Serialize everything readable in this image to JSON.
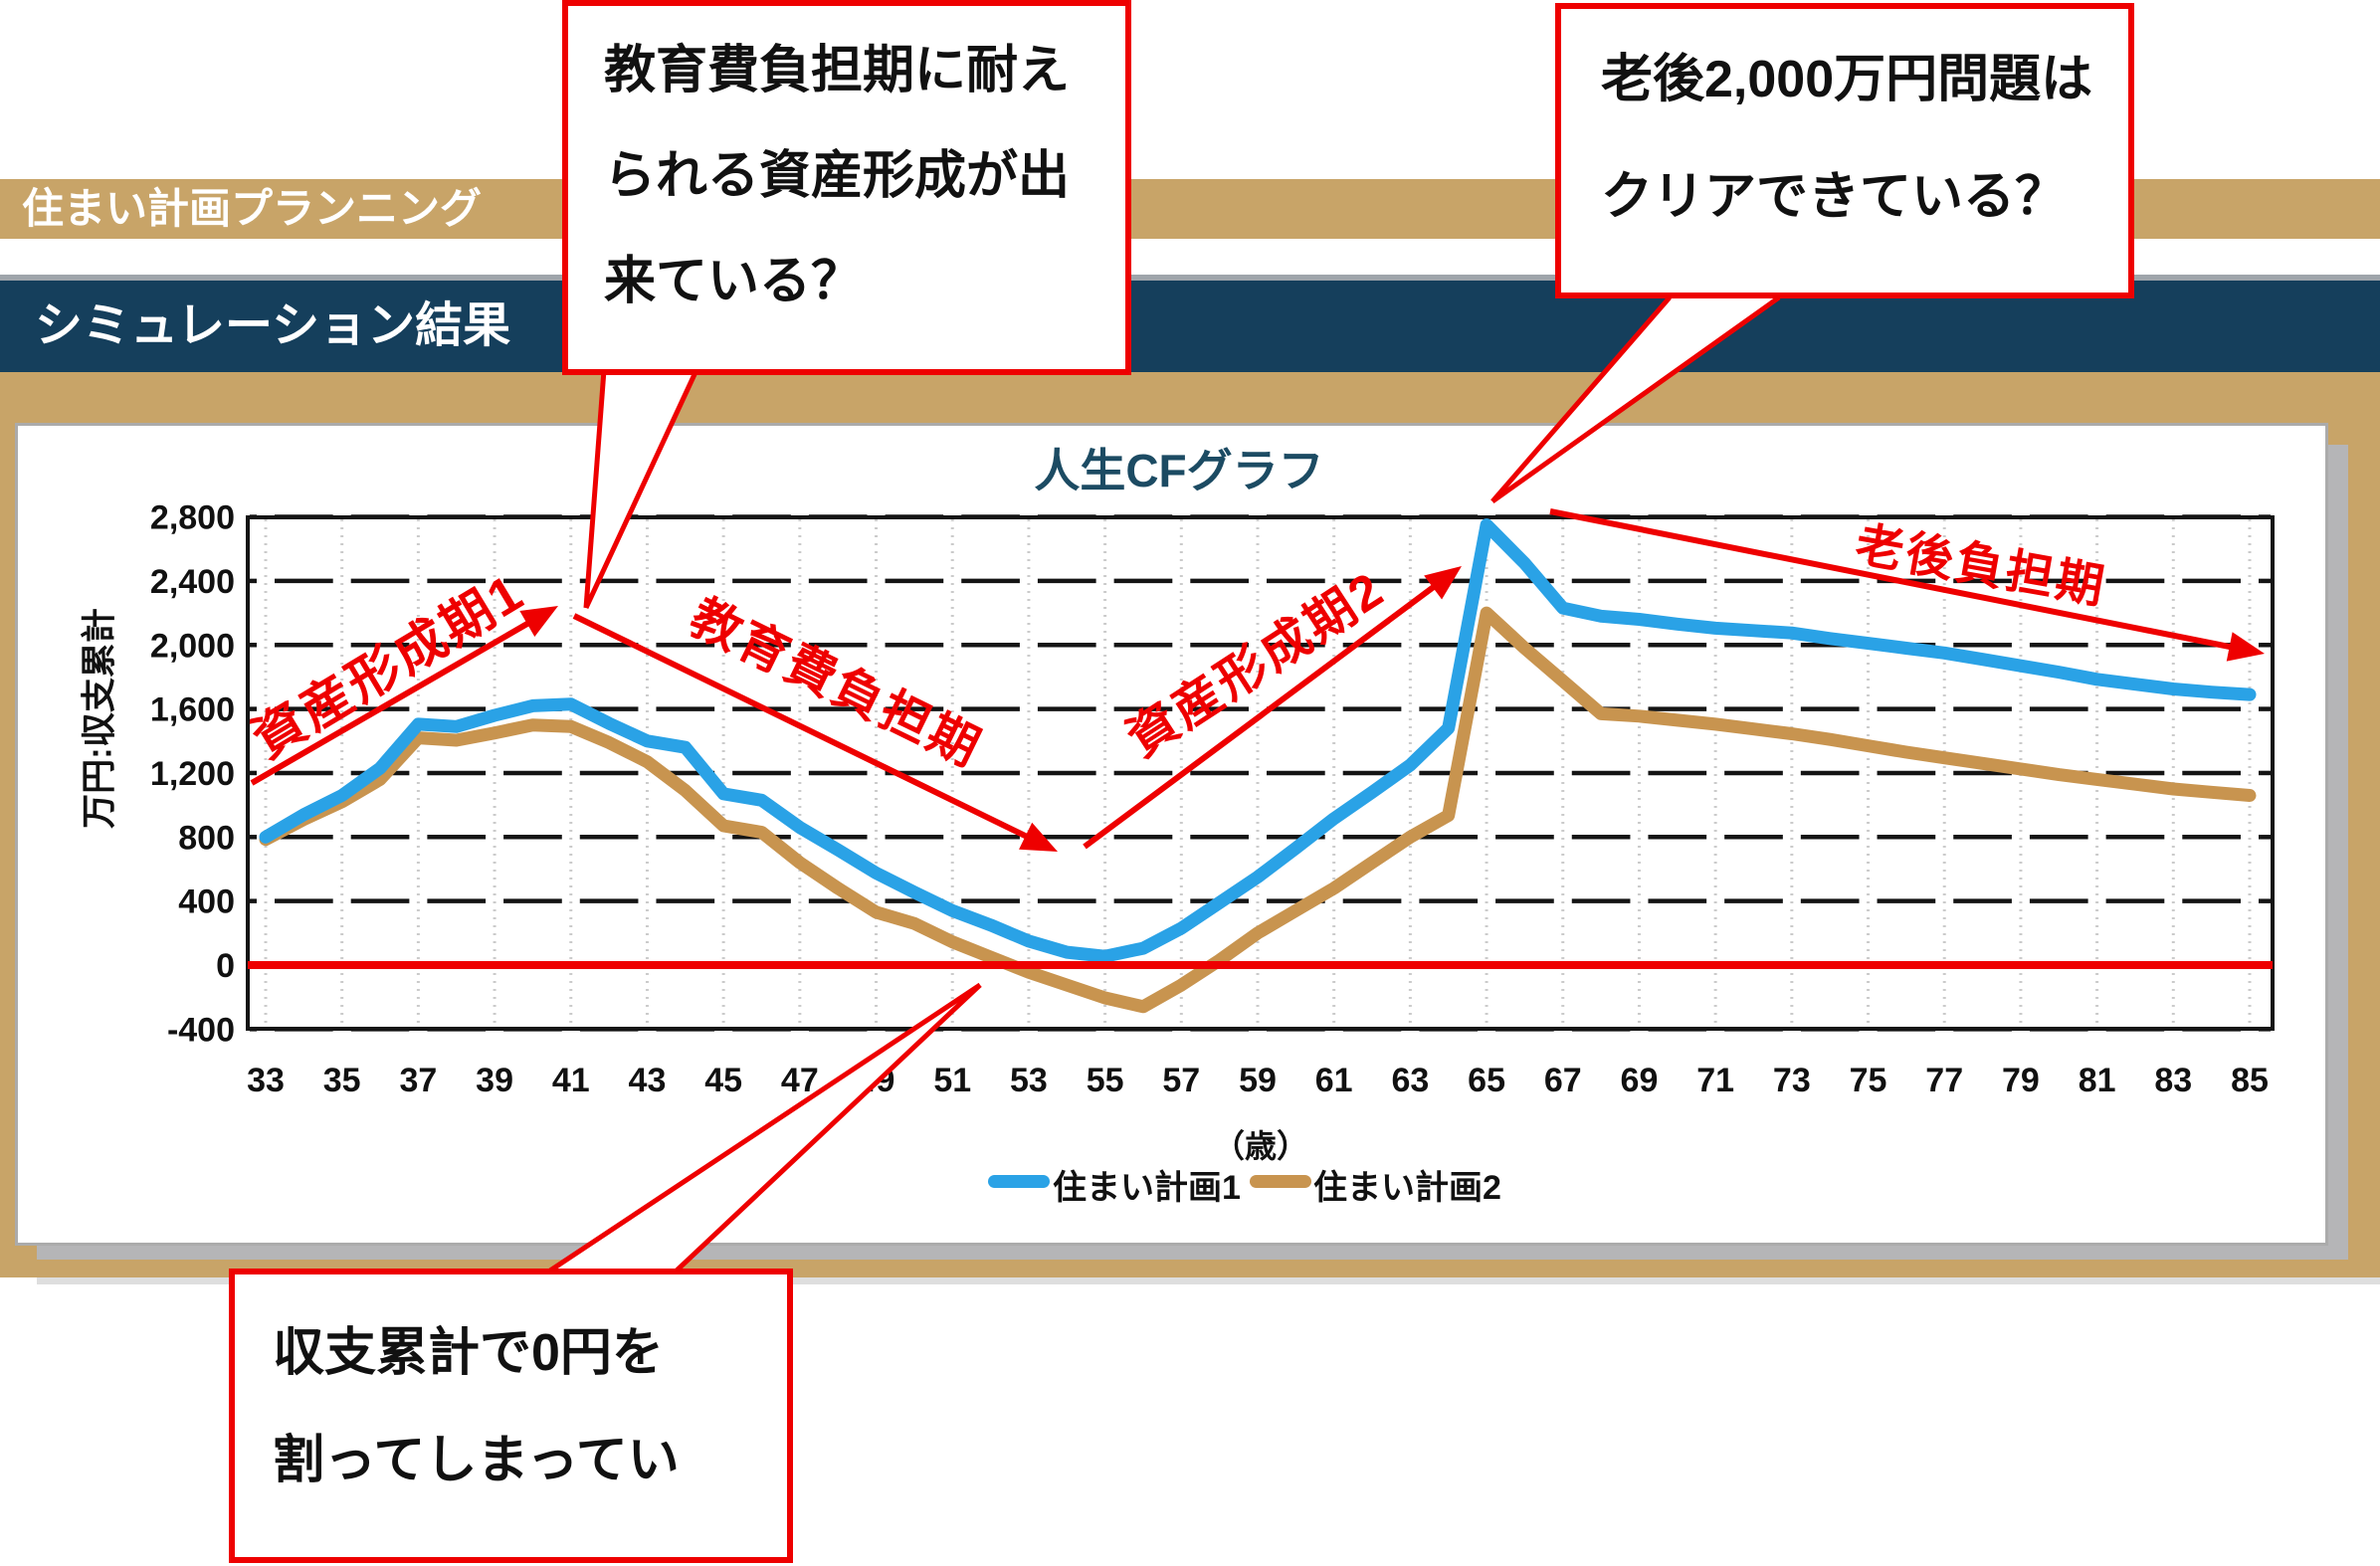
{
  "header": {
    "breadcrumb": "住まい計画プランニング",
    "section_title": "シミュレーション結果"
  },
  "chart": {
    "title": "人生CFグラフ",
    "y_axis_label": "万円:収支累計",
    "x_axis_unit": "（歳）"
  },
  "legend": [
    {
      "label": "住まい計画1",
      "color": "#2aa2e6"
    },
    {
      "label": "住まい計画2",
      "color": "#c8944f"
    }
  ],
  "callouts": {
    "education": {
      "lines": [
        "教育費負担期に耐え",
        "られる資産形成が出",
        "来ている？"
      ]
    },
    "retirement": {
      "lines": [
        "老後2,000万円問題は",
        "クリアできている？"
      ]
    },
    "deficit": {
      "lines": [
        "収支累計で0円を",
        "割ってしまってい"
      ]
    }
  },
  "annotations": {
    "asset1": {
      "label": "資産形成期1"
    },
    "education_period": {
      "label": "教育費負担期"
    },
    "asset2": {
      "label": "資産形成期2"
    },
    "retirement_period": {
      "label": "老後負担期"
    }
  },
  "colors": {
    "tan": "#c8a468",
    "navy": "#153f5c",
    "title_navy": "#1c4b63",
    "red": "#ee0000",
    "plan1_blue": "#2aa2e6",
    "plan2_tan": "#c8944f",
    "grid_black": "#141414",
    "grid_dotted": "#cbcbcb",
    "shadow_gray": "#b5b5b7"
  },
  "chart_data": {
    "type": "line",
    "title": "人生CFグラフ",
    "xlabel": "（歳）",
    "ylabel": "万円:収支累計",
    "x_start": 33,
    "x_end": 85,
    "x_tick_step": 2,
    "ylim": [
      -400,
      2800
    ],
    "y_tick_step": 400,
    "y_ticks": [
      2800,
      2400,
      2000,
      1600,
      1200,
      800,
      400,
      0,
      -400
    ],
    "x_ticks": [
      33,
      35,
      37,
      39,
      41,
      43,
      45,
      47,
      49,
      51,
      53,
      55,
      57,
      59,
      61,
      63,
      65,
      67,
      69,
      71,
      73,
      75,
      77,
      79,
      81,
      83,
      85
    ],
    "x": [
      33,
      34,
      35,
      36,
      37,
      38,
      39,
      40,
      41,
      42,
      43,
      44,
      45,
      46,
      47,
      48,
      49,
      50,
      51,
      52,
      53,
      54,
      55,
      56,
      57,
      58,
      59,
      60,
      61,
      62,
      63,
      64,
      65,
      66,
      67,
      68,
      69,
      70,
      71,
      72,
      73,
      74,
      75,
      76,
      77,
      78,
      79,
      80,
      81,
      82,
      83,
      84,
      85
    ],
    "series": [
      {
        "name": "住まい計画1",
        "color": "#2aa2e6",
        "values": [
          800,
          940,
          1060,
          1230,
          1505,
          1490,
          1560,
          1620,
          1630,
          1510,
          1400,
          1360,
          1070,
          1030,
          860,
          720,
          575,
          455,
          340,
          250,
          150,
          80,
          55,
          105,
          230,
          390,
          550,
          730,
          915,
          1080,
          1250,
          1480,
          2750,
          2510,
          2230,
          2180,
          2160,
          2130,
          2105,
          2090,
          2075,
          2040,
          2010,
          1980,
          1950,
          1910,
          1870,
          1830,
          1785,
          1755,
          1725,
          1705,
          1690
        ]
      },
      {
        "name": "住まい計画2",
        "color": "#c8944f",
        "values": [
          785,
          910,
          1020,
          1160,
          1420,
          1405,
          1450,
          1500,
          1490,
          1390,
          1270,
          1090,
          870,
          830,
          640,
          480,
          330,
          260,
          145,
          50,
          -45,
          -125,
          -205,
          -260,
          -125,
          30,
          200,
          340,
          480,
          640,
          800,
          935,
          2200,
          1980,
          1775,
          1570,
          1555,
          1530,
          1505,
          1475,
          1445,
          1410,
          1370,
          1330,
          1295,
          1260,
          1225,
          1190,
          1160,
          1130,
          1100,
          1080,
          1060
        ]
      }
    ],
    "zero_line": {
      "value": 0,
      "color": "#ee0000"
    },
    "grid": "on",
    "legend_position": "bottom"
  }
}
